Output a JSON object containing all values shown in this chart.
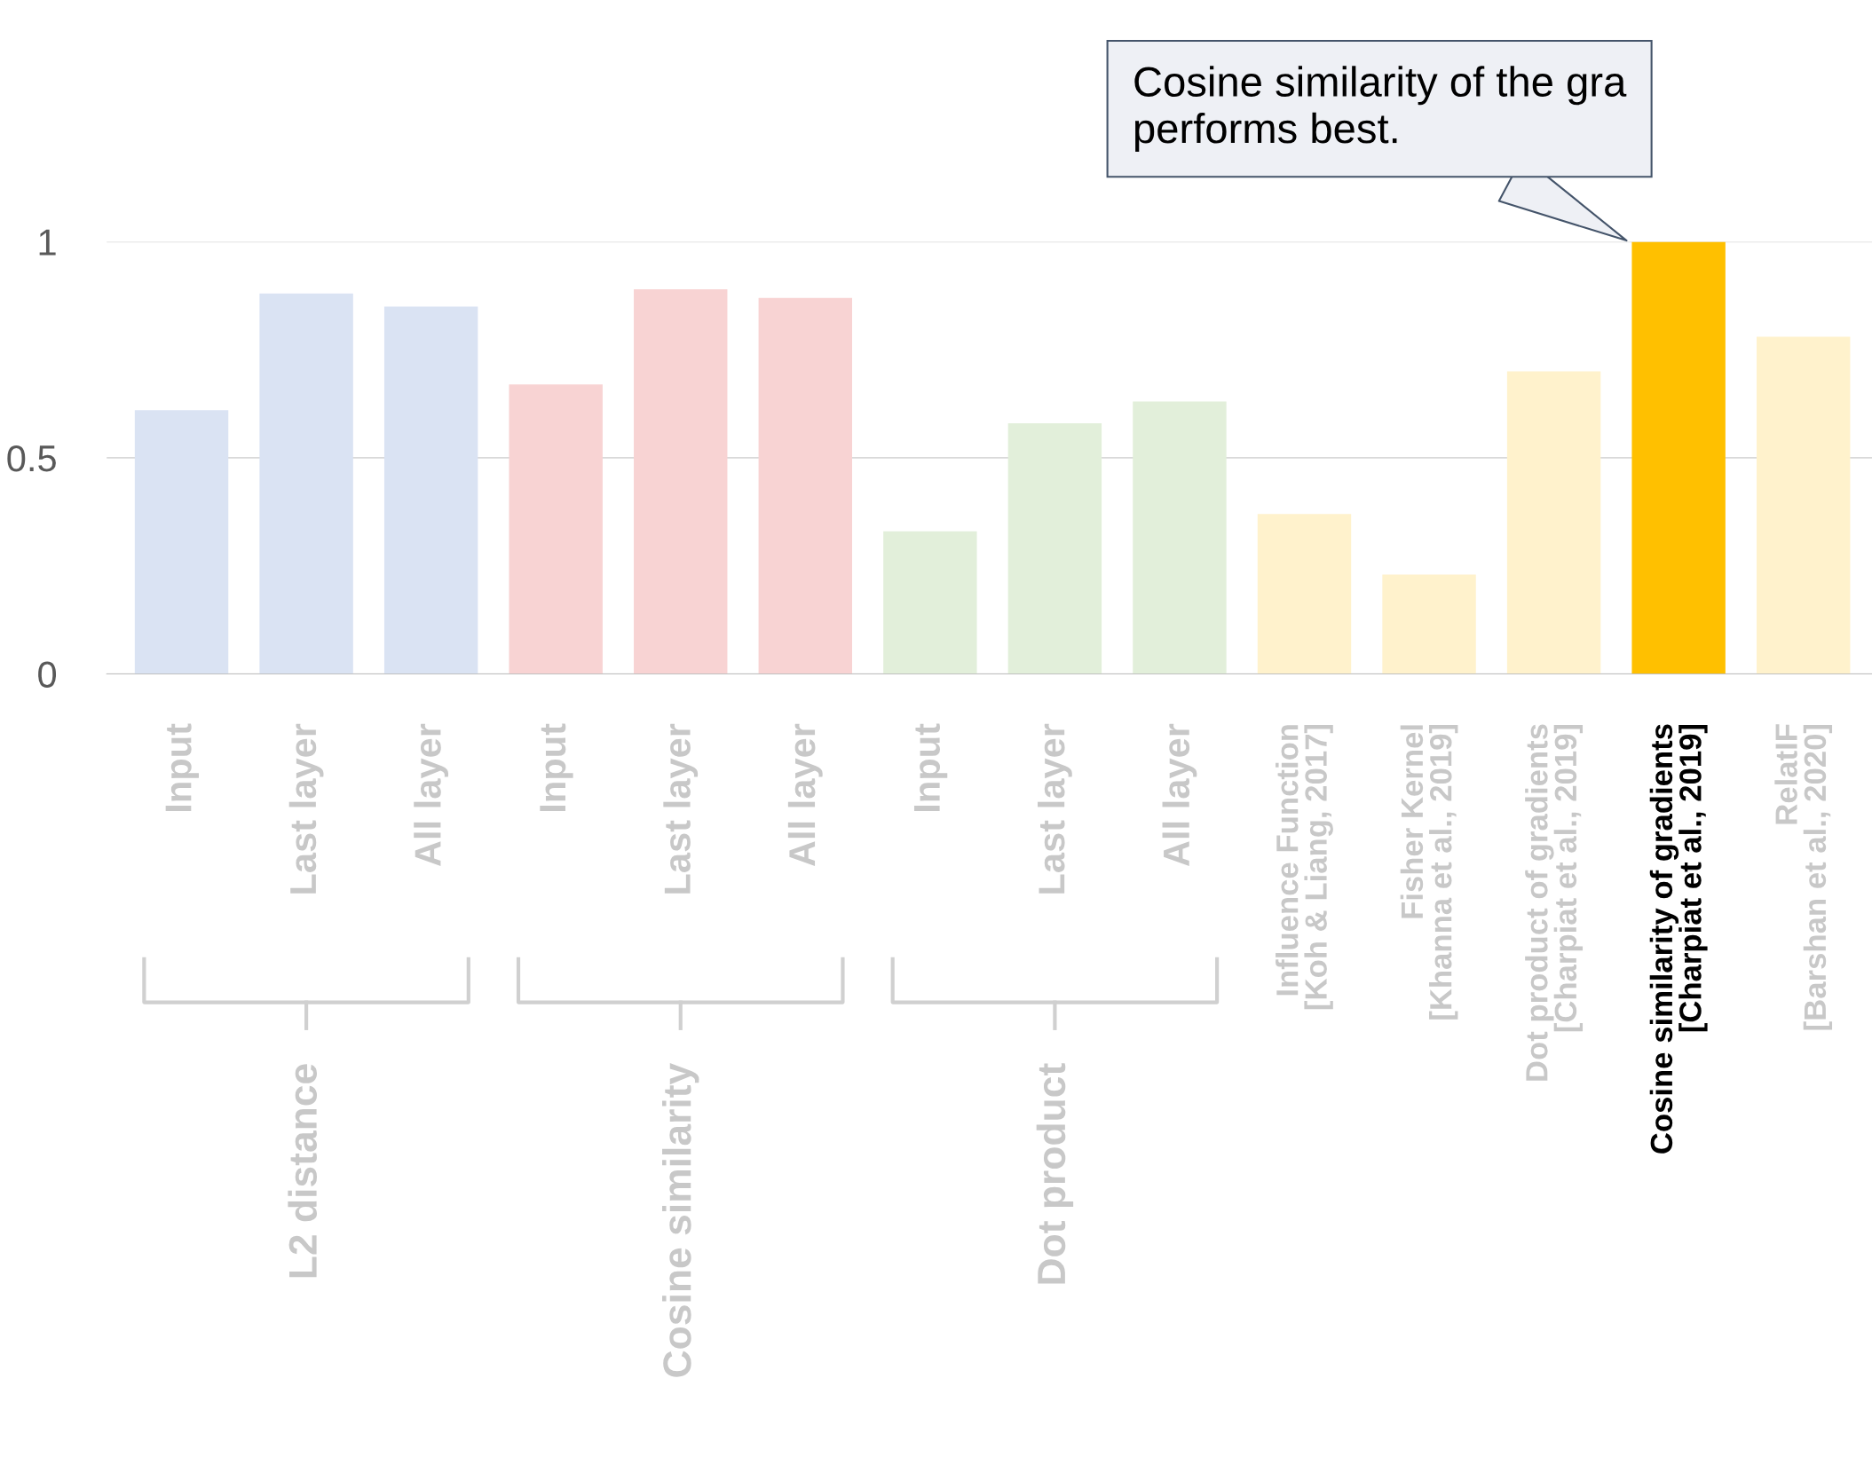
{
  "chart_data": {
    "type": "bar",
    "categories": [
      "Input",
      "Last layer",
      "All layer",
      "Input",
      "Last layer",
      "All layer",
      "Input",
      "Last layer",
      "All layer",
      "Influence Function\n[Koh & Liang, 2017]",
      "Fisher Kernel\n[Khanna et al., 2019]",
      "Dot product of gradients\n[Charpiat et al., 2019]",
      "Cosine similarity of gradients\n[Charpiat et al., 2019]",
      "RelatIF\n[Barshan et al., 2020]"
    ],
    "values": [
      0.61,
      0.88,
      0.85,
      0.67,
      0.89,
      0.87,
      0.33,
      0.58,
      0.63,
      0.37,
      0.23,
      0.7,
      1.0,
      0.78
    ],
    "colors": [
      "#dae3f3",
      "#dae3f3",
      "#dae3f3",
      "#f8d3d3",
      "#f8d3d3",
      "#f8d3d3",
      "#e2efda",
      "#e2efda",
      "#e2efda",
      "#fff2cc",
      "#fff2cc",
      "#fff2cc",
      "#ffc000",
      "#fff2cc"
    ],
    "ylim": [
      0,
      1
    ],
    "yticks": [
      0,
      0.5,
      1
    ],
    "grid": "y",
    "annotations": [
      {
        "text": "Cosine similarity of the gra\nperforms best.",
        "x": "Cosine similarity of gradients\n[Charpiat et al., 2019]",
        "y": 1.0
      },
      "L2 distance",
      "Cosine similarity",
      "Dot product"
    ]
  }
}
